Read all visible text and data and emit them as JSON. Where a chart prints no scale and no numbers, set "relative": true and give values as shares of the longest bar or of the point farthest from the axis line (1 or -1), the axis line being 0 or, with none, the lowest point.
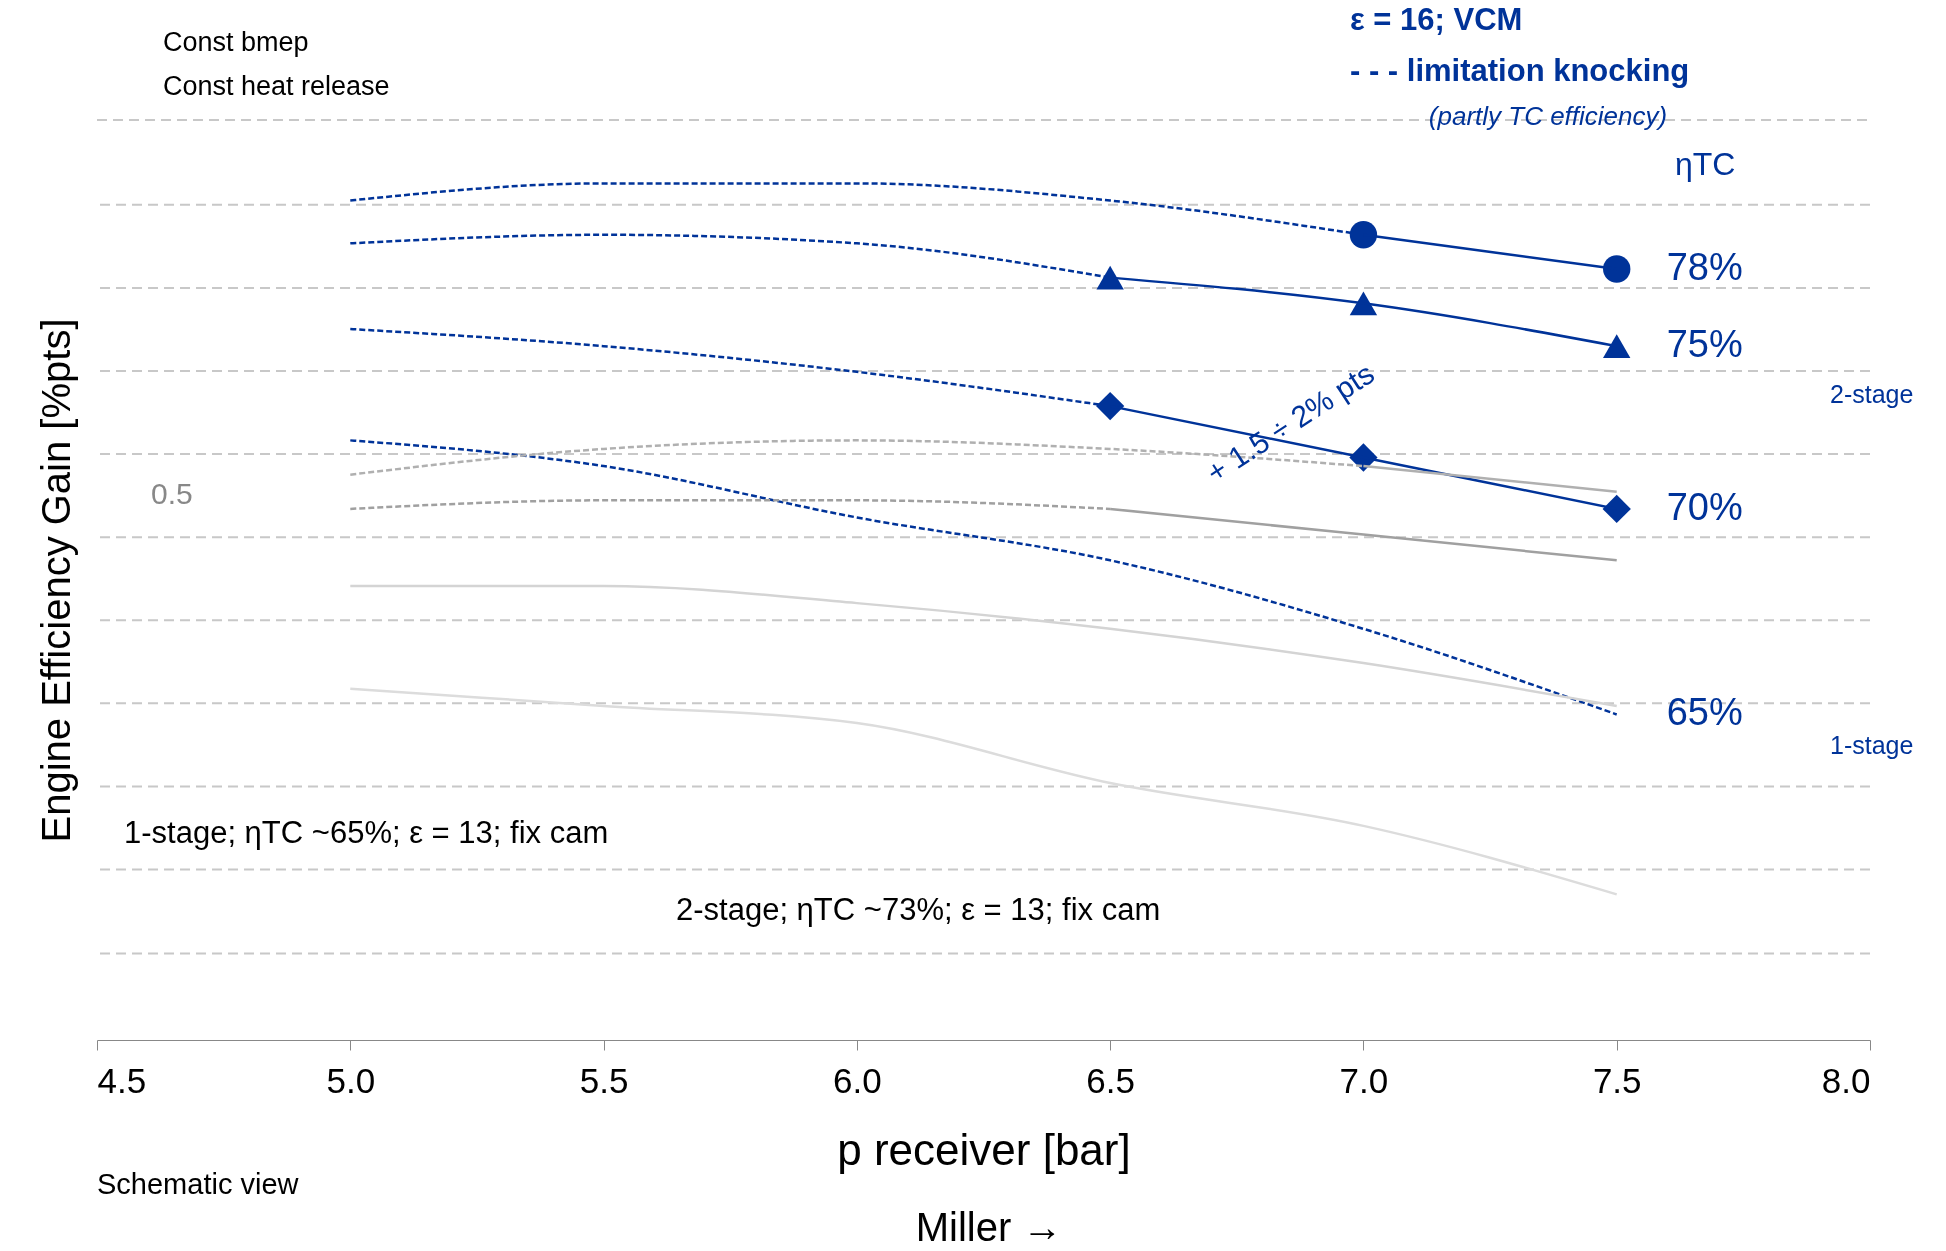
{
  "chart_data": {
    "type": "line",
    "relative": true,
    "xlabel": "p receiver [bar]",
    "ylabel": "Engine Efficiency Gain [%pts]",
    "xlim": [
      4.5,
      8.0
    ],
    "xticks": [
      {
        "value": 4.5,
        "label": "4.5"
      },
      {
        "value": 5,
        "label": "5.0"
      },
      {
        "value": 5.5,
        "label": "5.5"
      },
      {
        "value": 6,
        "label": "6.0"
      },
      {
        "value": 6.5,
        "label": "6.5"
      },
      {
        "value": 7,
        "label": "7.0"
      },
      {
        "value": 7.5,
        "label": "7.5"
      },
      {
        "value": 8,
        "label": "8.0"
      }
    ],
    "grid": false,
    "series": [
      {
        "color": "#003399",
        "line_style": "dashed",
        "marker": "none",
        "x": [
          5.0,
          5.5,
          6.0,
          6.5,
          7.0
        ],
        "values": [
          0.98,
          1.0,
          1.0,
          0.98,
          0.94
        ]
      },
      {
        "name": "78%",
        "color": "#003399",
        "line_style": "solid",
        "marker": "circle",
        "x": [
          7.0,
          7.5
        ],
        "values": [
          0.94,
          0.9
        ]
      },
      {
        "color": "#003399",
        "line_style": "dashed",
        "marker": "none",
        "x": [
          5.0,
          5.5,
          6.0,
          6.5
        ],
        "values": [
          0.93,
          0.94,
          0.93,
          0.89
        ]
      },
      {
        "name": "75%",
        "color": "#003399",
        "line_style": "solid",
        "marker": "triangle",
        "x": [
          6.5,
          7.0,
          7.5
        ],
        "values": [
          0.89,
          0.86,
          0.81
        ]
      },
      {
        "color": "#003399",
        "line_style": "dashed",
        "marker": "none",
        "x": [
          5.0,
          5.5,
          6.0,
          6.5
        ],
        "values": [
          0.83,
          0.81,
          0.78,
          0.74
        ]
      },
      {
        "name": "70%",
        "color": "#003399",
        "line_style": "solid",
        "marker": "diamond",
        "x": [
          6.5,
          7.0,
          7.5
        ],
        "values": [
          0.74,
          0.68,
          0.62
        ]
      },
      {
        "name": "65%",
        "color": "#003399",
        "line_style": "dashed",
        "marker": "none",
        "x": [
          5.0,
          5.5,
          6.0,
          6.5,
          7.0,
          7.5
        ],
        "values": [
          0.7,
          0.67,
          0.61,
          0.56,
          0.48,
          0.38
        ]
      },
      {
        "color": "#b0b0b0",
        "line_style": "dashed",
        "marker": "none",
        "x": [
          5.0,
          5.5,
          6.0,
          6.5,
          7.0
        ],
        "values": [
          0.66,
          0.69,
          0.7,
          0.69,
          0.67
        ]
      },
      {
        "color": "#b0b0b0",
        "line_style": "solid",
        "marker": "none",
        "x": [
          7.0,
          7.5
        ],
        "values": [
          0.67,
          0.64
        ]
      },
      {
        "color": "#a0a0a0",
        "line_style": "dashed",
        "marker": "none",
        "x": [
          5.0,
          5.5,
          6.0,
          6.5
        ],
        "values": [
          0.62,
          0.63,
          0.63,
          0.62
        ]
      },
      {
        "color": "#a0a0a0",
        "line_style": "solid",
        "marker": "none",
        "x": [
          6.5,
          7.0,
          7.5
        ],
        "values": [
          0.62,
          0.59,
          0.56
        ]
      },
      {
        "color": "#d4d4d4",
        "line_style": "solid",
        "marker": "none",
        "x": [
          5.0,
          5.5,
          6.0,
          6.5,
          7.0,
          7.5
        ],
        "values": [
          0.53,
          0.53,
          0.51,
          0.48,
          0.44,
          0.39
        ]
      },
      {
        "color": "#dcdcdc",
        "line_style": "solid",
        "marker": "none",
        "x": [
          5.0,
          5.5,
          6.0,
          6.5,
          7.0,
          7.5
        ],
        "values": [
          0.41,
          0.39,
          0.37,
          0.3,
          0.25,
          0.17
        ]
      }
    ],
    "ref_lines": [
      {
        "axis": "y",
        "value": 1.074,
        "color": "#c8c8c8",
        "line_style": "dashed"
      },
      {
        "axis": "y",
        "value": 0.975,
        "color": "#c8c8c8",
        "line_style": "dashed"
      },
      {
        "axis": "y",
        "value": 0.878,
        "color": "#c8c8c8",
        "line_style": "dashed"
      },
      {
        "axis": "y",
        "value": 0.781,
        "color": "#c8c8c8",
        "line_style": "dashed"
      },
      {
        "axis": "y",
        "value": 0.684,
        "color": "#c8c8c8",
        "line_style": "dashed"
      },
      {
        "axis": "y",
        "value": 0.587,
        "color": "#c8c8c8",
        "line_style": "dashed"
      },
      {
        "axis": "y",
        "value": 0.49,
        "color": "#c8c8c8",
        "line_style": "dashed"
      },
      {
        "axis": "y",
        "value": 0.393,
        "color": "#c8c8c8",
        "line_style": "dashed"
      },
      {
        "axis": "y",
        "value": 0.296,
        "color": "#c8c8c8",
        "line_style": "dashed"
      },
      {
        "axis": "y",
        "value": 0.199,
        "color": "#c8c8c8",
        "line_style": "dashed"
      },
      {
        "axis": "y",
        "value": 0.101,
        "color": "#c8c8c8",
        "line_style": "dashed"
      }
    ],
    "annotations": [
      "Const bmep",
      "Const heat release",
      "ε = 16; VCM",
      "- - - limitation knocking",
      "(partly TC efficiency)",
      "ηTC",
      "0.5",
      "+ 1.5 ÷ 2% pts",
      "2-stage",
      "1-stage",
      "1-stage; ηTC ~65%; ε = 13; fix cam",
      "2-stage; ηTC ~73%; ε = 13; fix cam",
      "Schematic view",
      "Miller →"
    ]
  }
}
